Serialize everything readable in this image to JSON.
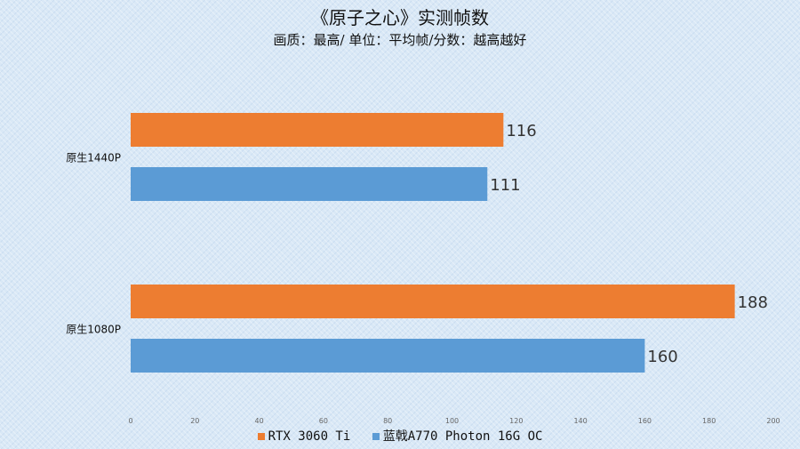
{
  "chart_data": {
    "type": "bar",
    "orientation": "horizontal",
    "title": "《原子之心》实测帧数",
    "subtitle": "画质：最高/ 单位：平均帧/分数：越高越好",
    "categories": [
      "原生1440P",
      "原生1080P"
    ],
    "series": [
      {
        "name": "RTX 3060 Ti",
        "color": "#ed7d31",
        "values": [
          116,
          188
        ]
      },
      {
        "name": "蓝戟A770 Photon 16G OC",
        "color": "#5b9bd5",
        "values": [
          111,
          160
        ]
      }
    ],
    "xlim": [
      0,
      200
    ],
    "xticks": [
      "0",
      "20",
      "40",
      "60",
      "80",
      "100",
      "120",
      "140",
      "160",
      "180",
      "200"
    ],
    "xtick_values": [
      0,
      20,
      40,
      60,
      80,
      100,
      120,
      140,
      160,
      180,
      200
    ],
    "legend_position": "bottom"
  }
}
